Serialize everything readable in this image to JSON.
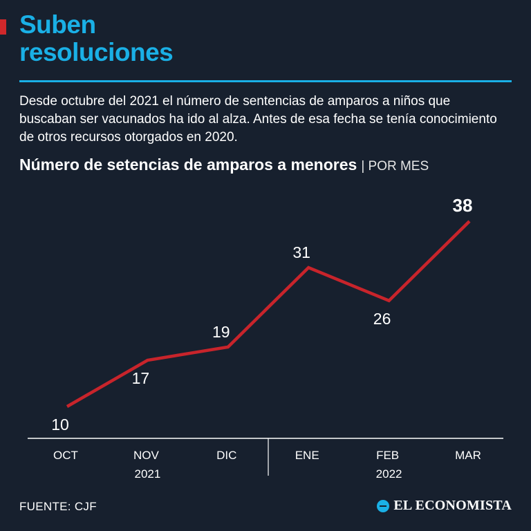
{
  "header": {
    "title_line1": "Suben",
    "title_line2": "resoluciones",
    "description": "Desde octubre del 2021 el número de sentencias de amparos a niños que buscaban ser vacunados ha ido al alza. Antes de esa fecha se tenía conocimiento de otros recursos otorgados en 2020."
  },
  "chart_heading": {
    "main": "Número de setencias de amparos a menores",
    "sub": "| POR MES"
  },
  "chart_data": {
    "type": "line",
    "title": "Número de setencias de amparos a menores",
    "subtitle": "| POR MES",
    "categories": [
      "OCT",
      "NOV",
      "DIC",
      "ENE",
      "FEB",
      "MAR"
    ],
    "year_labels": [
      {
        "label": "2021",
        "categories": [
          "OCT",
          "NOV",
          "DIC"
        ]
      },
      {
        "label": "2022",
        "categories": [
          "ENE",
          "FEB",
          "MAR"
        ]
      }
    ],
    "values": [
      10,
      17,
      19,
      31,
      26,
      38
    ],
    "highlight_last": true,
    "ylim": [
      3,
      43
    ],
    "grid": false,
    "line_color": "#c8242b"
  },
  "footer": {
    "source": "FUENTE: CJF",
    "brand": "EL ECONOMISTA"
  },
  "colors": {
    "background": "#17202e",
    "accent_blue": "#1ab0e6",
    "accent_red": "#d0282b",
    "text": "#ffffff"
  }
}
